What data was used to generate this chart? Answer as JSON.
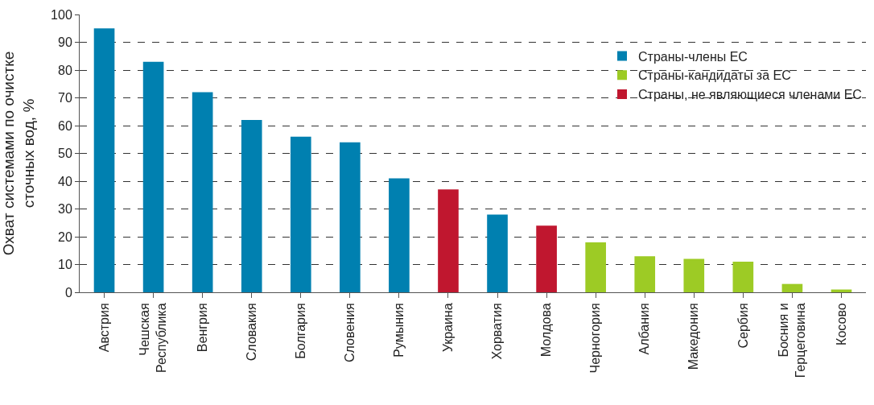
{
  "chart_data": {
    "type": "bar",
    "ylabel": "Охват системами по очистке сточных вод, %",
    "categories": [
      "Австрия",
      "Чешская Республика",
      "Венгрия",
      "Словакия",
      "Болгария",
      "Словения",
      "Румыния",
      "Украина",
      "Хорватия",
      "Молдова",
      "Черногория",
      "Албания",
      "Македония",
      "Сербия",
      "Босния и Герцеговина",
      "Косово"
    ],
    "series": [
      {
        "name": "Страны-члены ЕС",
        "color": "#0080b0",
        "values": [
          95,
          83,
          72,
          62,
          56,
          54,
          41,
          null,
          28,
          null,
          null,
          null,
          null,
          null,
          null,
          null
        ]
      },
      {
        "name": "Страны-кандидаты за ЕС",
        "color": "#9dcb25",
        "values": [
          null,
          null,
          null,
          null,
          null,
          null,
          null,
          null,
          null,
          null,
          18,
          13,
          12,
          11,
          3,
          1
        ]
      },
      {
        "name": "Страны, не являющиеся членами ЕС",
        "color": "#c0172f",
        "values": [
          null,
          null,
          null,
          null,
          null,
          null,
          null,
          37,
          null,
          24,
          null,
          null,
          null,
          null,
          null,
          null
        ]
      }
    ],
    "ylim": [
      0,
      100
    ],
    "yticks": [
      0,
      10,
      20,
      30,
      40,
      50,
      60,
      70,
      80,
      90,
      100
    ],
    "grid": "y",
    "legend": "top right"
  }
}
